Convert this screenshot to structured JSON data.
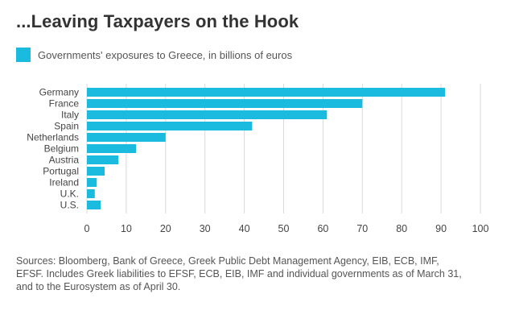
{
  "title": "...Leaving Taxpayers on the Hook",
  "legend": {
    "label": "Governments' exposures to Greece, in billions of euros",
    "color": "#1bbbe0"
  },
  "source_note": "Sources: Bloomberg, Bank of Greece, Greek Public Debt Management Agency, EIB, ECB, IMF, EFSF. Includes Greek liabilities to EFSF, ECB, EIB, IMF and individual governments as of March 31, and to the Eurosystem as of April 30.",
  "chart_data": {
    "type": "bar",
    "orientation": "horizontal",
    "categories": [
      "Germany",
      "France",
      "Italy",
      "Spain",
      "Netherlands",
      "Belgium",
      "Austria",
      "Portugal",
      "Ireland",
      "U.K.",
      "U.S."
    ],
    "series": [
      {
        "name": "Governments' exposures to Greece, in billions of euros",
        "values": [
          91,
          70,
          61,
          42,
          20,
          12.5,
          8,
          4.5,
          2.5,
          2,
          3.5
        ]
      }
    ],
    "title": "...Leaving Taxpayers on the Hook",
    "xlabel": "",
    "ylabel": "",
    "xlim": [
      0,
      100
    ],
    "xticks": [
      0,
      10,
      20,
      30,
      40,
      50,
      60,
      70,
      80,
      90,
      100
    ],
    "grid": "vertical",
    "legend_position": "top-left",
    "bar_color": "#1bbbe0",
    "grid_color": "#d9d9d9"
  }
}
